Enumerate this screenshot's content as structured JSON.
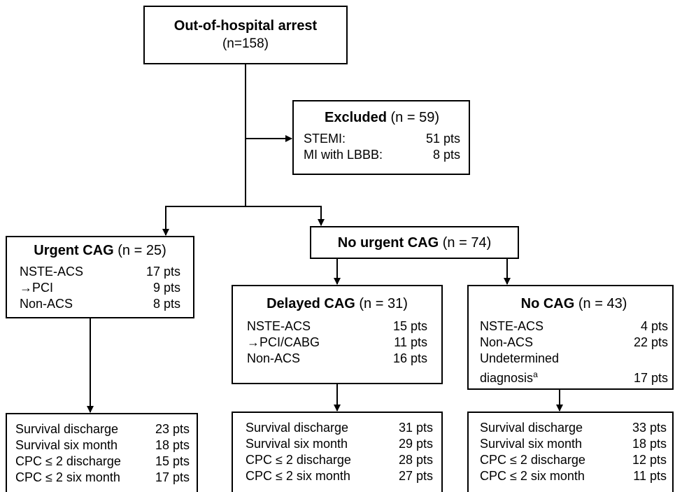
{
  "root": {
    "title": "Out-of-hospital arrest",
    "n": "(n=158)"
  },
  "excluded": {
    "title": "Excluded",
    "n": "(n = 59)",
    "rows": [
      {
        "label": "STEMI:",
        "value": "51 pts"
      },
      {
        "label": "MI with LBBB:",
        "value": "8 pts"
      }
    ]
  },
  "urgent": {
    "title": "Urgent CAG",
    "n": "(n = 25)",
    "rows": [
      {
        "label": "NSTE-ACS",
        "value": "17 pts"
      },
      {
        "label": "→PCI",
        "value": "9 pts"
      },
      {
        "label": "Non-ACS",
        "value": "8 pts"
      }
    ],
    "outcomes": [
      {
        "label": "Survival discharge",
        "value": "23 pts"
      },
      {
        "label": "Survival six month",
        "value": "18 pts"
      },
      {
        "label": "CPC ≤ 2 discharge",
        "value": "15 pts"
      },
      {
        "label": "CPC ≤ 2 six month",
        "value": "17 pts"
      }
    ]
  },
  "no_urgent": {
    "title": "No urgent CAG",
    "n": "(n = 74)"
  },
  "delayed": {
    "title": "Delayed CAG",
    "n": "(n = 31)",
    "rows": [
      {
        "label": "NSTE-ACS",
        "value": "15 pts"
      },
      {
        "label": "→PCI/CABG",
        "value": "11 pts"
      },
      {
        "label": "Non-ACS",
        "value": "16 pts"
      }
    ],
    "outcomes": [
      {
        "label": "Survival discharge",
        "value": "31 pts"
      },
      {
        "label": "Survival six month",
        "value": "29 pts"
      },
      {
        "label": "CPC ≤ 2 discharge",
        "value": "28 pts"
      },
      {
        "label": "CPC ≤ 2 six month",
        "value": "27 pts"
      }
    ]
  },
  "no_cag": {
    "title": "No CAG",
    "n": "(n = 43)",
    "rows": [
      {
        "label": "NSTE-ACS",
        "value": "4 pts"
      },
      {
        "label": "Non-ACS",
        "value": "22 pts"
      },
      {
        "label": "Undetermined diagnosis",
        "note": "a",
        "value": "17 pts"
      }
    ],
    "outcomes": [
      {
        "label": "Survival discharge",
        "value": "33 pts"
      },
      {
        "label": "Survival six month",
        "value": "18 pts"
      },
      {
        "label": "CPC ≤ 2 discharge",
        "value": "12 pts"
      },
      {
        "label": "CPC ≤ 2 six month",
        "value": "11 pts"
      }
    ]
  }
}
